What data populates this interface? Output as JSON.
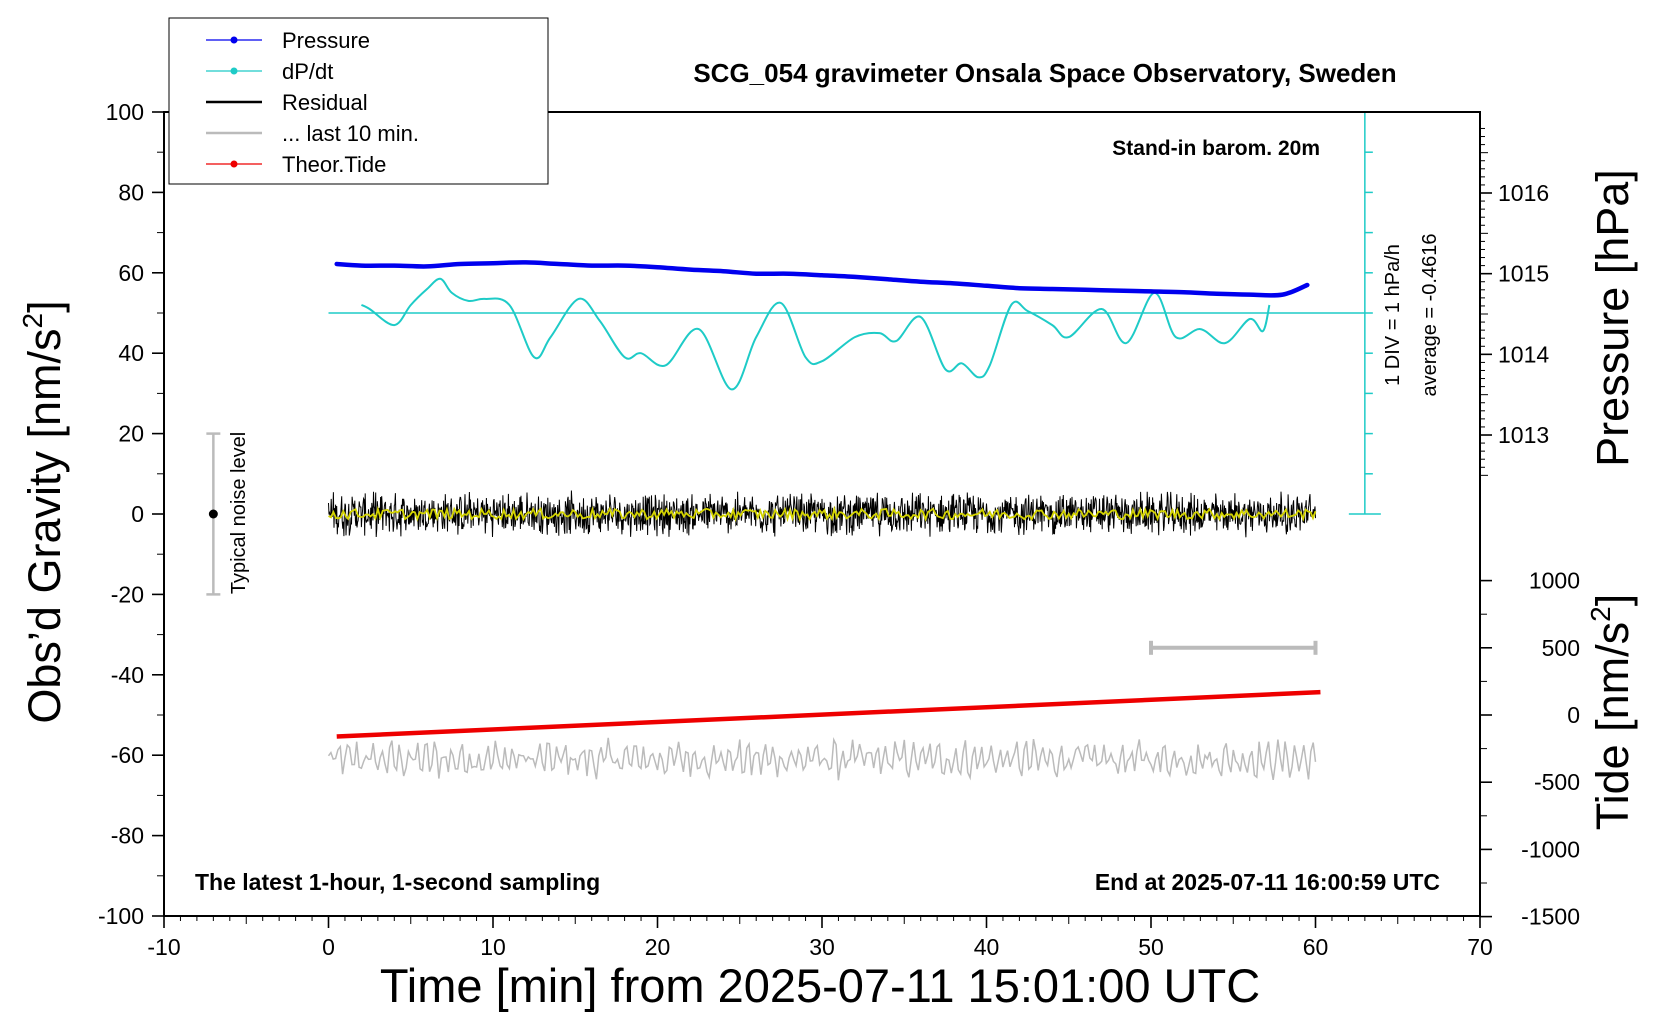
{
  "chart_data": {
    "type": "line",
    "title": "SCG_054 gravimeter Onsala Space Observatory, Sweden",
    "note_top_right": "Stand-in barom. 20m",
    "note_bottom_left": "The latest 1-hour, 1-second sampling",
    "note_bottom_right": "End at 2025-07-11 16:00:59 UTC",
    "xlabel": "Time [min] from 2025-07-11 15:01:00 UTC",
    "ylabel_left": "Obs’d Gravity [nm/s",
    "ylabel_left_sup": "2",
    "ylabel_left_end": "]",
    "ylabel_right_pressure": "Pressure [hPa]",
    "ylabel_right_tide": "Tide [nm/s",
    "ylabel_right_tide_sup": "2",
    "ylabel_right_tide_end": "]",
    "noise_label": "Typical noise level",
    "scale_label_1": "1 DIV = 1 hPa/h",
    "scale_label_2": "average = -0.4616",
    "xlim": [
      -10,
      70
    ],
    "xticks": [
      "-10",
      "0",
      "10",
      "20",
      "30",
      "40",
      "50",
      "60",
      "70"
    ],
    "ylim_left": [
      -100,
      100
    ],
    "yticks_left": [
      "100",
      "80",
      "60",
      "40",
      "20",
      "0",
      "-20",
      "-40",
      "-60",
      "-80",
      "-100"
    ],
    "pressure_ticks": [
      "1016",
      "1015",
      "1014",
      "1013"
    ],
    "tide_ticks": [
      "1000",
      "500",
      "0",
      "-500",
      "-1000",
      "-1500"
    ],
    "legend": {
      "placement": "top-left",
      "entries": [
        {
          "label": "Pressure",
          "color": "#0000ee",
          "marker": true
        },
        {
          "label": "dP/dt",
          "color": "#1ecbc7",
          "marker": true
        },
        {
          "label": "Residual",
          "color": "#000000",
          "marker": false
        },
        {
          "label": "... last 10 min.",
          "color": "#bbbbbb",
          "marker": false
        },
        {
          "label": "Theor.Tide",
          "color": "#ee0000",
          "marker": true
        }
      ]
    },
    "series": [
      {
        "name": "Pressure",
        "axis": "pressure_hPa",
        "color": "#0000ee",
        "x": [
          0.5,
          2,
          4,
          6,
          8,
          10,
          12,
          14,
          16,
          18,
          20,
          22,
          24,
          26,
          28,
          30,
          32,
          34,
          36,
          38,
          40,
          42,
          44,
          46,
          48,
          50,
          52,
          54,
          56,
          58,
          59.5
        ],
        "y": [
          1015.12,
          1015.1,
          1015.1,
          1015.09,
          1015.12,
          1015.13,
          1015.14,
          1015.12,
          1015.1,
          1015.1,
          1015.08,
          1015.05,
          1015.03,
          1015.0,
          1015.0,
          1014.98,
          1014.96,
          1014.93,
          1014.9,
          1014.88,
          1014.85,
          1014.82,
          1014.81,
          1014.8,
          1014.79,
          1014.78,
          1014.77,
          1014.75,
          1014.74,
          1014.74,
          1014.86
        ]
      },
      {
        "name": "dP/dt",
        "axis": "gravity_nm_s2",
        "color": "#1ecbc7",
        "x": [
          2,
          2.5,
          4,
          5,
          6,
          6.8,
          7.5,
          8.5,
          9.5,
          11,
          12.5,
          13.5,
          15.2,
          16.5,
          18,
          19,
          20.5,
          22.5,
          24.5,
          26,
          27.5,
          29,
          30,
          32,
          33.5,
          34.5,
          36,
          37.5,
          38.5,
          39.5,
          40.2,
          41.5,
          42.5,
          44,
          45,
          47,
          48.5,
          50.2,
          51.5,
          53,
          54.5,
          56,
          56.8,
          57.2
        ],
        "y": [
          52,
          51,
          47,
          52,
          56,
          58.5,
          55,
          53,
          53.5,
          52,
          39,
          44,
          53.5,
          48,
          39,
          40,
          37,
          46,
          31,
          44,
          52.5,
          39,
          38,
          44,
          45,
          43,
          49,
          36,
          37.5,
          34,
          37,
          52,
          50.5,
          47,
          44,
          51,
          42.5,
          55,
          44,
          46,
          42.5,
          48.5,
          45.5,
          52
        ]
      },
      {
        "name": "Residual",
        "axis": "gravity_nm_s2",
        "color": "#000000",
        "x_range": [
          0,
          60
        ],
        "y_center": 0,
        "y_amplitude": 6
      },
      {
        "name": "... last 10 min.",
        "axis": "gravity_nm_s2",
        "color": "#bbbbbb",
        "x_range": [
          0,
          60
        ],
        "y_center": -61,
        "y_amplitude": 5
      },
      {
        "name": "Theor.Tide",
        "axis": "tide_nm_s2",
        "color": "#ee0000",
        "x": [
          0.5,
          60.3
        ],
        "y": [
          -160,
          170
        ]
      }
    ],
    "dpdt_average_line": 50,
    "residual_smoothed_color": "#d4d400",
    "noise_bar": {
      "x": -7,
      "ymin": -20,
      "ymax": 20,
      "center": 0
    },
    "last10_bar": {
      "x": [
        50,
        60
      ],
      "tide_value": 500
    },
    "scale_bar": {
      "x": 63,
      "ymin": 0,
      "ymax": 100,
      "divisions": 10
    }
  }
}
